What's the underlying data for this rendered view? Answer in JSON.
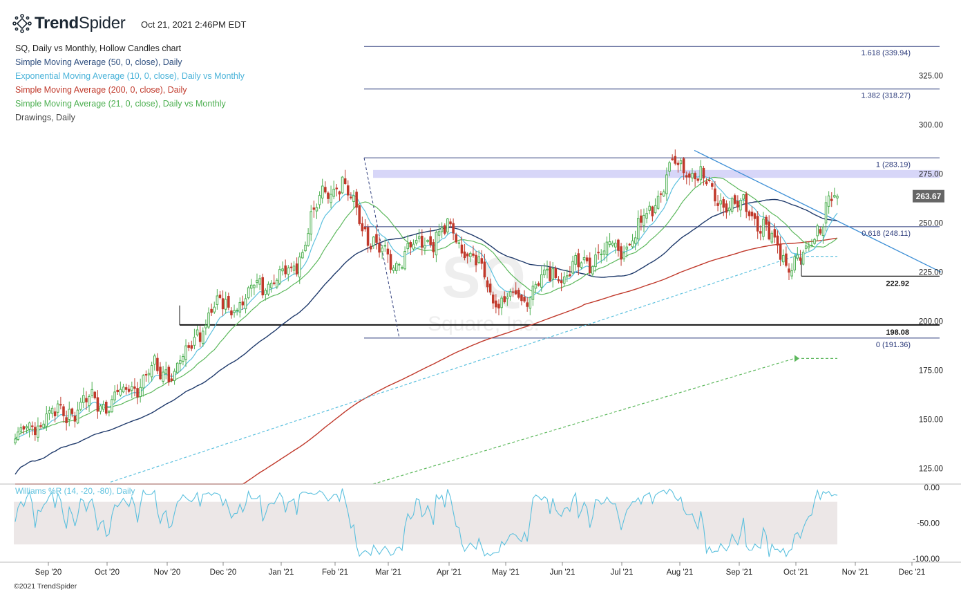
{
  "header": {
    "brand": "TrendSpider",
    "brand_bold": "Trend",
    "brand_light": "Spider",
    "timestamp": "Oct 21, 2021 2:46PM EDT"
  },
  "legend": [
    {
      "label": "SQ, Daily vs Monthly, Hollow Candles chart",
      "color": "#222222"
    },
    {
      "label": "Simple Moving Average (50, 0, close), Daily",
      "color": "#2f4f7f"
    },
    {
      "label": "Exponential Moving Average (10, 0, close), Daily vs Monthly",
      "color": "#4ab3d9"
    },
    {
      "label": "Simple Moving Average (200, 0, close), Daily",
      "color": "#c0392b"
    },
    {
      "label": "Simple Moving Average (21, 0, close), Daily vs Monthly",
      "color": "#4caf50"
    },
    {
      "label": "Drawings, Daily",
      "color": "#444444"
    }
  ],
  "watermark": {
    "symbol": "SQ",
    "name": "Square, Inc."
  },
  "copyright": "©2021 TrendSpider",
  "colors": {
    "up": "#4caf50",
    "down": "#c0392b",
    "sma50": "#1f3a6b",
    "ema10": "#5bc0de",
    "sma200": "#c0392b",
    "sma21": "#5cb85c",
    "fib": "#2b3a7a",
    "zone": "#c9c8f5",
    "trend": "#3d8fd6",
    "wr": "#5bc0de",
    "wr_band": "#ece7e7",
    "price_tag": "#666666"
  },
  "chart_data": {
    "type": "candlestick",
    "symbol": "SQ",
    "x_ticks": [
      "Sep '20",
      "Oct '20",
      "Nov '20",
      "Dec '20",
      "Jan '21",
      "Feb '21",
      "Mar '21",
      "Apr '21",
      "May '21",
      "Jun '21",
      "Jul '21",
      "Aug '21",
      "Sep '21",
      "Oct '21",
      "Nov '21",
      "Dec '21"
    ],
    "y_ticks": [
      125,
      150,
      175,
      200,
      225,
      250,
      275,
      300,
      325
    ],
    "y_tick_labels": [
      "125.00",
      "150.00",
      "175.00",
      "200.00",
      "225.00",
      "250.00",
      "275.00",
      "300.00",
      "325.00"
    ],
    "ylim": [
      117,
      346
    ],
    "last_price": "263.67",
    "last_price_value": 263.67,
    "fib_levels": [
      {
        "ratio": "1.618",
        "value": 339.94,
        "label": "1.618 (339.94)"
      },
      {
        "ratio": "1.382",
        "value": 318.27,
        "label": "1.382 (318.27)"
      },
      {
        "ratio": "1",
        "value": 283.19,
        "label": "1 (283.19)"
      },
      {
        "ratio": "0.618",
        "value": 248.11,
        "label": "0.618 (248.11)"
      },
      {
        "ratio": "0",
        "value": 191.36,
        "label": "0 (191.36)"
      }
    ],
    "resistance_zone": [
      273.0,
      277.0
    ],
    "support_levels": [
      {
        "value": 222.92,
        "label": "222.92"
      },
      {
        "value": 198.08,
        "label": "198.08"
      }
    ],
    "close_series": {
      "x": [
        "Aug '20",
        "Sep '20",
        "Oct '20",
        "Nov '20",
        "Dec '20",
        "Jan '21",
        "Feb '21",
        "Mar '21",
        "Apr '21",
        "May '21",
        "Jun '21",
        "Jul '21",
        "Aug '21",
        "Sep '21",
        "Oct '21",
        "Oct 21 '21"
      ],
      "values": [
        140,
        152,
        160,
        175,
        208,
        222,
        270,
        232,
        245,
        210,
        225,
        238,
        278,
        258,
        230,
        263.67
      ]
    },
    "williams_r": {
      "label": "Williams %R (14, -20, -80), Daily",
      "y_ticks": [
        "0.00",
        "-50.00",
        "-100.00"
      ],
      "ylim": [
        -105,
        5
      ],
      "band": [
        -20,
        -80
      ]
    }
  }
}
